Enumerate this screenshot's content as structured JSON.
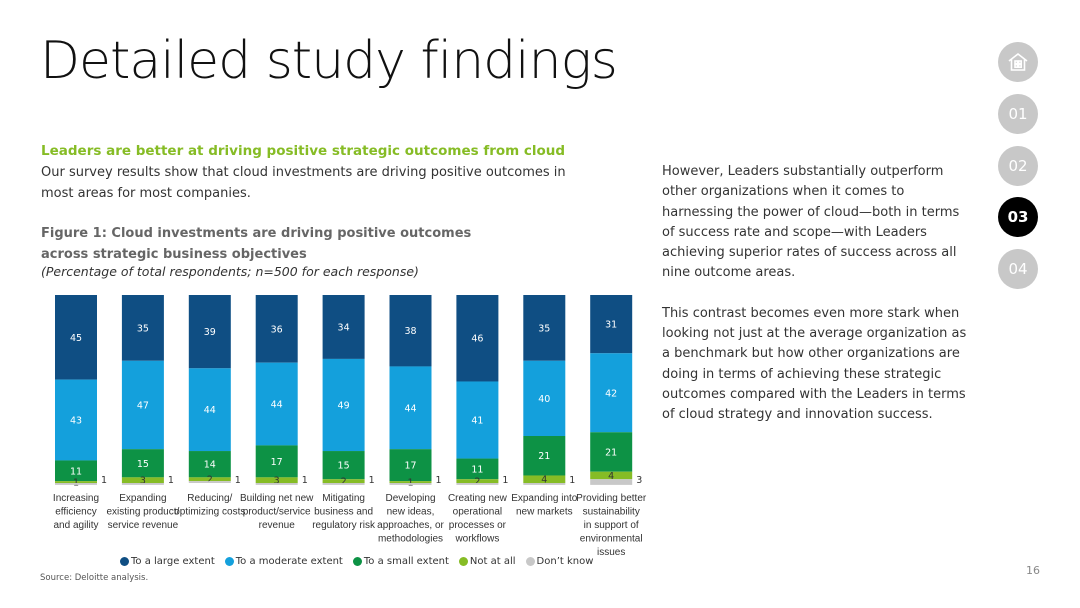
{
  "page": {
    "title": "Detailed study findings",
    "section_heading": "Leaders are better at driving positive strategic outcomes from cloud",
    "intro": "Our survey results show that cloud investments are driving positive outcomes in most areas for most companies.",
    "figure_title": "Figure 1: Cloud investments are driving positive outcomes across strategic business objectives",
    "figure_subtitle": "(Percentage of total respondents; n=500 for each response)",
    "source": "Source: Deloitte analysis.",
    "right_paragraphs": [
      "However, Leaders substantially outperform other organizations when it comes to harnessing the power of cloud—both in terms of success rate and scope—with Leaders achieving superior rates of success across all nine outcome areas.",
      "This contrast becomes even more stark when looking not just at the average organization as a benchmark but how other organizations are doing in terms of achieving these strategic outcomes compared with the Leaders in terms of cloud strategy and innovation success."
    ],
    "page_number": "16"
  },
  "nav": {
    "items": [
      "home-icon",
      "01",
      "02",
      "03",
      "04"
    ],
    "active": "03"
  },
  "colors": {
    "large": "#0f4e83",
    "moderate": "#14a0dc",
    "small": "#0d9245",
    "not_at_all": "#86bc25",
    "dont_know": "#c8c8c8",
    "accent": "#86bc25"
  },
  "chart_data": {
    "type": "bar",
    "stacked": true,
    "categories": [
      [
        "Increasing",
        "efficiency",
        "and agility"
      ],
      [
        "Expanding",
        "existing product/",
        "service revenue"
      ],
      [
        "Reducing/",
        "optimizing costs"
      ],
      [
        "Building net new",
        "product/service",
        "revenue"
      ],
      [
        "Mitigating",
        "business and",
        "regulatory risk"
      ],
      [
        "Developing",
        "new ideas,",
        "approaches, or",
        "methodologies"
      ],
      [
        "Creating new",
        "operational",
        "processes or",
        "workflows"
      ],
      [
        "Expanding into",
        "new markets"
      ],
      [
        "Providing better",
        "sustainability",
        "in support of",
        "environmental",
        "issues"
      ]
    ],
    "series": [
      {
        "name": "To a large extent",
        "values": [
          45,
          35,
          39,
          36,
          34,
          38,
          46,
          35,
          31
        ]
      },
      {
        "name": "To a moderate extent",
        "values": [
          43,
          47,
          44,
          44,
          49,
          44,
          41,
          40,
          42
        ]
      },
      {
        "name": "To a small extent",
        "values": [
          11,
          15,
          14,
          17,
          15,
          17,
          11,
          21,
          21
        ]
      },
      {
        "name": "Not at all",
        "values": [
          1,
          3,
          2,
          3,
          2,
          1,
          2,
          4,
          4
        ]
      },
      {
        "name": "Don’t know",
        "values": [
          1,
          1,
          1,
          1,
          1,
          1,
          1,
          1,
          3
        ]
      }
    ],
    "ylim": [
      0,
      100
    ],
    "legend_position": "bottom"
  }
}
